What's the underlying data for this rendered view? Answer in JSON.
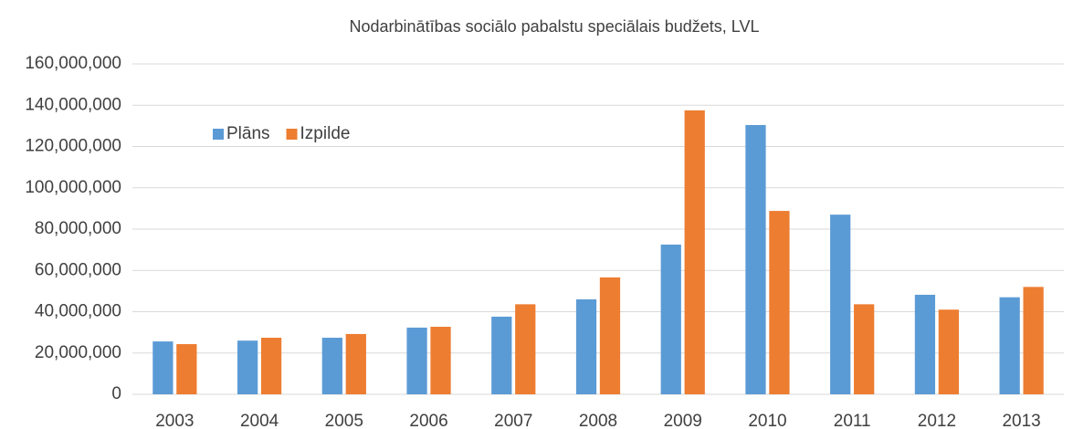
{
  "chart_data": {
    "type": "bar",
    "title": "Nodarbinātības sociālo pabalstu speciālais budžets, LVL",
    "categories": [
      "2003",
      "2004",
      "2005",
      "2006",
      "2007",
      "2008",
      "2009",
      "2010",
      "2011",
      "2012",
      "2013"
    ],
    "series": [
      {
        "name": "Plāns",
        "color": "#5b9bd5",
        "values": [
          25600000,
          26000000,
          27400000,
          32300000,
          37600000,
          46000000,
          72500000,
          130400000,
          87000000,
          48200000,
          47000000
        ]
      },
      {
        "name": "Izpilde",
        "color": "#ed7d31",
        "values": [
          24300000,
          27400000,
          29200000,
          32700000,
          43600000,
          56600000,
          137500000,
          88800000,
          43600000,
          41000000,
          52000000
        ]
      }
    ],
    "ylim": [
      0,
      160000000
    ],
    "yticks": [
      0,
      {
        "value": 20000000,
        "label": "20,000,000"
      },
      {
        "value": 40000000,
        "label": "40,000,000"
      },
      {
        "value": 60000000,
        "label": "60,000,000"
      },
      {
        "value": 80000000,
        "label": "80,000,000"
      },
      {
        "value": 100000000,
        "label": "100,000,000"
      },
      {
        "value": 120000000,
        "label": "120,000,000"
      },
      {
        "value": 140000000,
        "label": "140,000,000"
      },
      {
        "value": 160000000,
        "label": "160,000,000"
      }
    ],
    "grid": true,
    "legend": "upper-left"
  }
}
